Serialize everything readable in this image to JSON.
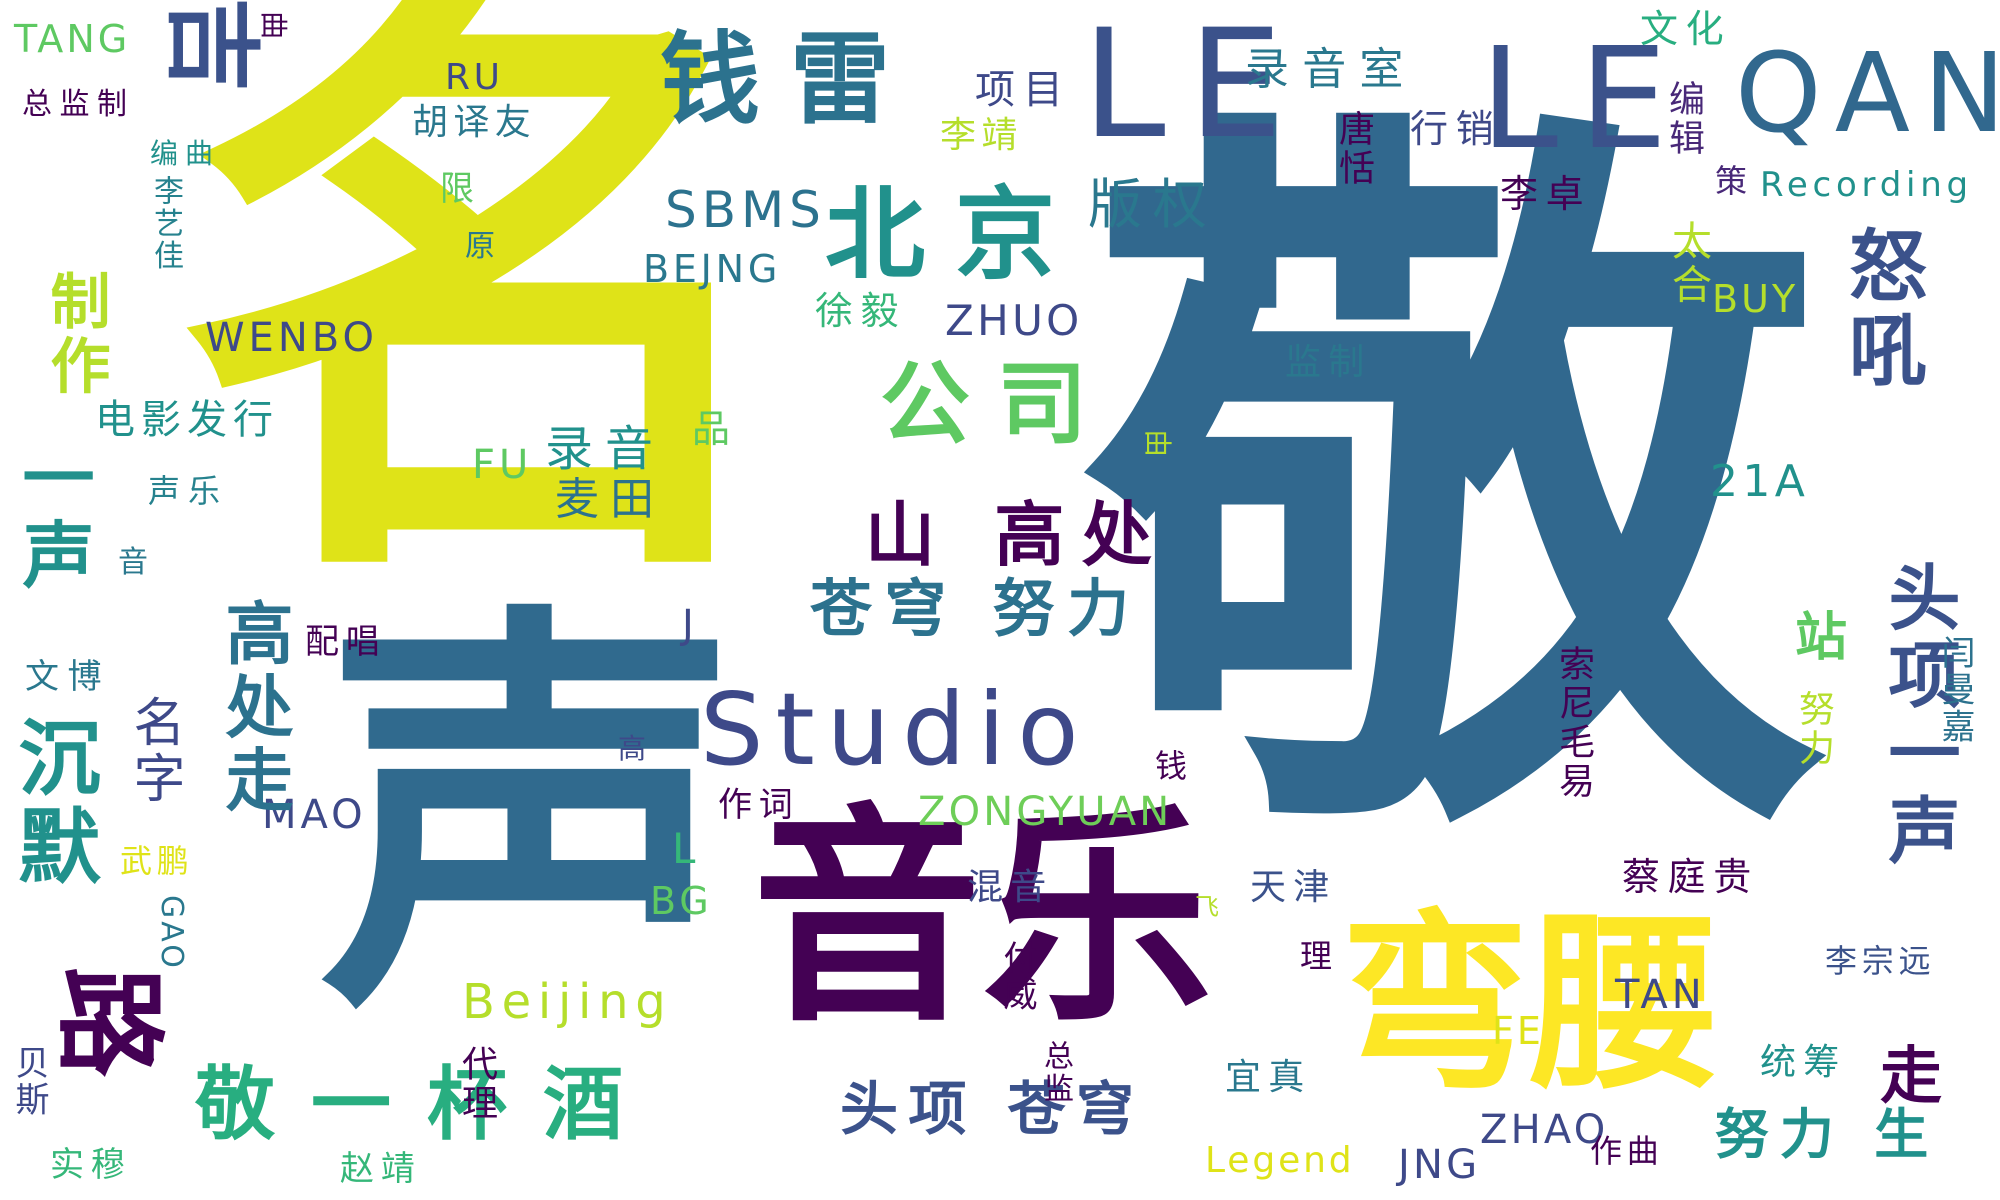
{
  "colors": {
    "background": "#ffffff",
    "palette": [
      "#440154",
      "#3b528b",
      "#21918c",
      "#5ec962",
      "#fde725"
    ]
  },
  "words": [
    {
      "text": "敬",
      "color": "#31688e"
    },
    {
      "text": "名",
      "color": "#dfe318"
    },
    {
      "text": "声",
      "color": "#306a8e"
    },
    {
      "text": "音乐",
      "color": "#440154"
    },
    {
      "text": "弯腰",
      "color": "#fde725"
    },
    {
      "text": "LE",
      "color": "#3b528b"
    },
    {
      "text": "LE",
      "color": "#3b528b"
    },
    {
      "text": "QAN",
      "color": "#31688e"
    },
    {
      "text": "钱雷",
      "color": "#2c728e"
    },
    {
      "text": "吉",
      "color": "#3b528b"
    },
    {
      "text": "北京",
      "color": "#21918c"
    },
    {
      "text": "公司",
      "color": "#5ec962"
    },
    {
      "text": "Studio",
      "color": "#3e4989"
    },
    {
      "text": "山 高处",
      "color": "#440154"
    },
    {
      "text": "苍穹 努力",
      "color": "#2c728e"
    },
    {
      "text": "敬一杯酒",
      "color": "#28ae80"
    },
    {
      "text": "头项 苍穹",
      "color": "#3b528b"
    },
    {
      "text": "路",
      "color": "#440154"
    },
    {
      "text": "录音室",
      "color": "#2a788e"
    },
    {
      "text": "项目",
      "color": "#3e4989"
    },
    {
      "text": "版权",
      "color": "#2a788e"
    },
    {
      "text": "SBMS",
      "color": "#2c728e"
    },
    {
      "text": "BEJNG",
      "color": "#2a788e"
    },
    {
      "text": "李靖",
      "color": "#b5de2b"
    },
    {
      "text": "胡译友",
      "color": "#2a788e"
    },
    {
      "text": "RU",
      "color": "#3e4989"
    },
    {
      "text": "文化",
      "color": "#28ae80"
    },
    {
      "text": "TANG",
      "color": "#5ec962"
    },
    {
      "text": "总监制",
      "color": "#440154"
    },
    {
      "text": "编曲",
      "color": "#21918c"
    },
    {
      "text": "李艺佳",
      "color": "#26828e"
    },
    {
      "text": "行销",
      "color": "#3e4989"
    },
    {
      "text": "唐恬",
      "color": "#440154"
    },
    {
      "text": "李卓",
      "color": "#440154"
    },
    {
      "text": "编辑",
      "color": "#482878"
    },
    {
      "text": "策",
      "color": "#482878"
    },
    {
      "text": "Recording",
      "color": "#21918c"
    },
    {
      "text": "太合",
      "color": "#b5de2b"
    },
    {
      "text": "BUY",
      "color": "#b5de2b"
    },
    {
      "text": "怒吼",
      "color": "#3b528b"
    },
    {
      "text": "ZHUO",
      "color": "#3e4989"
    },
    {
      "text": "徐毅",
      "color": "#35b779"
    },
    {
      "text": "监制",
      "color": "#2a788e"
    },
    {
      "text": "WENBO",
      "color": "#3e4989"
    },
    {
      "text": "电影发行",
      "color": "#21918c"
    },
    {
      "text": "FU",
      "color": "#5ec962"
    },
    {
      "text": "录音",
      "color": "#21918c"
    },
    {
      "text": "品",
      "color": "#5ec962"
    },
    {
      "text": "麦田",
      "color": "#2c728e"
    },
    {
      "text": "声乐",
      "color": "#26828e"
    },
    {
      "text": "音",
      "color": "#2a788e"
    },
    {
      "text": "21A",
      "color": "#21918c"
    },
    {
      "text": "配唱",
      "color": "#440154"
    },
    {
      "text": "J",
      "color": "#3e4989"
    },
    {
      "text": "文博",
      "color": "#2a788e"
    },
    {
      "text": "名字",
      "color": "#3e4989"
    },
    {
      "text": "高",
      "color": "#3e4989"
    },
    {
      "text": "钱",
      "color": "#440154"
    },
    {
      "text": "MAO",
      "color": "#3e4989"
    },
    {
      "text": "ZONGYUAN",
      "color": "#6ece58"
    },
    {
      "text": "作词",
      "color": "#440154"
    },
    {
      "text": "L",
      "color": "#35b779"
    },
    {
      "text": "BG",
      "color": "#5ec962"
    },
    {
      "text": "混音",
      "color": "#3e4989"
    },
    {
      "text": "天津",
      "color": "#3b528b"
    },
    {
      "text": "Beijing",
      "color": "#b5de2b"
    },
    {
      "text": "付威",
      "color": "#440154"
    },
    {
      "text": "总监",
      "color": "#440154"
    },
    {
      "text": "代理",
      "color": "#440154"
    },
    {
      "text": "赵靖",
      "color": "#35b779"
    },
    {
      "text": "宜真",
      "color": "#2a788e"
    },
    {
      "text": "理",
      "color": "#440154"
    },
    {
      "text": "FE",
      "color": "#dfe318"
    },
    {
      "text": "TAN",
      "color": "#3e4989"
    },
    {
      "text": "李宗远",
      "color": "#3b528b"
    },
    {
      "text": "统筹",
      "color": "#21918c"
    },
    {
      "text": "蔡庭贵",
      "color": "#440154"
    },
    {
      "text": "走",
      "color": "#440154"
    },
    {
      "text": "头项一声",
      "color": "#3b528b"
    },
    {
      "text": "站",
      "color": "#5ec962"
    },
    {
      "text": "努力",
      "color": "#b5de2b"
    },
    {
      "text": "闫曼嘉",
      "color": "#2c728e"
    },
    {
      "text": "索尼毛易",
      "color": "#440154"
    },
    {
      "text": "努力 生",
      "color": "#21918c"
    },
    {
      "text": "ZHAO",
      "color": "#3e4989"
    },
    {
      "text": "作曲",
      "color": "#440154"
    },
    {
      "text": "JNG",
      "color": "#3e4989"
    },
    {
      "text": "Legend",
      "color": "#dfe318"
    },
    {
      "text": "沉默",
      "color": "#21918c"
    },
    {
      "text": "一声",
      "color": "#21918c"
    },
    {
      "text": "制作",
      "color": "#b5de2b"
    },
    {
      "text": "高处走",
      "color": "#2c728e"
    },
    {
      "text": "GAO",
      "color": "#2a788e"
    },
    {
      "text": "武鹏",
      "color": "#dfe318"
    },
    {
      "text": "贝斯",
      "color": "#3e4989"
    },
    {
      "text": "实穆",
      "color": "#35b779"
    },
    {
      "text": "限",
      "color": "#5ec962"
    },
    {
      "text": "原",
      "color": "#2a788e"
    },
    {
      "text": "曲",
      "color": "#440154"
    },
    {
      "text": "由",
      "color": "#b5de2b"
    },
    {
      "text": "飞",
      "color": "#b5de2b"
    }
  ]
}
